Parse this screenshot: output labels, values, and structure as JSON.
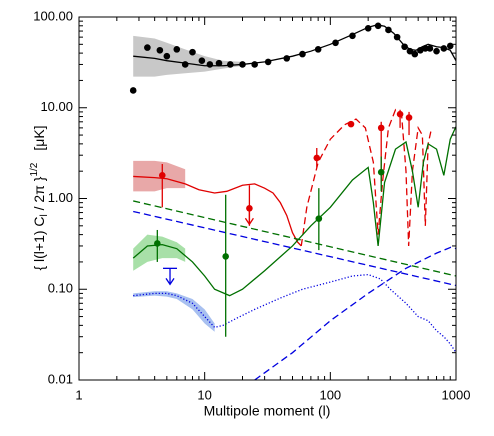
{
  "chart_data": {
    "type": "line",
    "xlog": true,
    "ylog": true,
    "xlim": [
      1,
      1000
    ],
    "ylim": [
      0.01,
      100
    ],
    "xticks": [
      1,
      10,
      100,
      1000
    ],
    "yticks": [
      {
        "value": 0.01,
        "label": "0.01"
      },
      {
        "value": 0.1,
        "label": "0.10"
      },
      {
        "value": 1,
        "label": "1.00"
      },
      {
        "value": 10,
        "label": "10.00"
      },
      {
        "value": 100,
        "label": "100.00"
      }
    ],
    "xlabel": "Multipole moment (l)",
    "ylabel": "{ l(l+1) C",
    "ylabel_sub": "l",
    "ylabel_mid": " / 2π }",
    "ylabel_sup": "1/2",
    "ylabel_unit": "[μK]",
    "bands": [
      {
        "color": "#c8c8c8",
        "x": [
          2.7,
          4,
          5,
          7,
          10,
          14,
          20
        ],
        "upper": [
          62,
          58,
          52,
          44,
          37,
          33,
          32
        ],
        "lower": [
          22,
          22,
          23,
          24,
          25,
          27,
          29
        ]
      },
      {
        "color": "#e8a8a8",
        "x": [
          2.7,
          4,
          5,
          7
        ],
        "upper": [
          2.6,
          2.6,
          2.5,
          2.1
        ],
        "lower": [
          1.2,
          1.2,
          1.3,
          1.3
        ]
      },
      {
        "color": "#a8e0a8",
        "x": [
          2.7,
          3.5,
          4.6,
          6,
          7
        ],
        "upper": [
          0.28,
          0.4,
          0.38,
          0.33,
          0.28
        ],
        "lower": [
          0.16,
          0.2,
          0.22,
          0.22,
          0.2
        ]
      },
      {
        "color": "#a8c0f0",
        "x": [
          2.7,
          4,
          5,
          6,
          8,
          10,
          12
        ],
        "upper": [
          0.09,
          0.095,
          0.095,
          0.09,
          0.078,
          0.06,
          0.042
        ],
        "lower": [
          0.082,
          0.085,
          0.083,
          0.078,
          0.06,
          0.042,
          0.034
        ]
      }
    ],
    "series": [
      {
        "color": "#000000",
        "style": "solid",
        "x": [
          2.7,
          4,
          5,
          7,
          10,
          14,
          20,
          30,
          50,
          70,
          100,
          150,
          200,
          236,
          270,
          320,
          380,
          430,
          480,
          540,
          600,
          700,
          800,
          900,
          1000
        ],
        "values": [
          37,
          35,
          33,
          31,
          29,
          29,
          30,
          32,
          37,
          42,
          50,
          64,
          77,
          82,
          79,
          66,
          50,
          44,
          43,
          47,
          50,
          47,
          46,
          43,
          33
        ]
      },
      {
        "color": "#e00000",
        "style": "solid",
        "x": [
          2.7,
          4,
          5,
          7,
          9,
          12,
          15,
          20,
          25,
          30,
          35,
          40,
          45,
          50,
          55,
          58.7
        ],
        "values": [
          1.75,
          1.7,
          1.65,
          1.45,
          1.25,
          1.15,
          1.2,
          1.4,
          1.45,
          1.3,
          1.15,
          0.9,
          0.65,
          0.42,
          0.33,
          0.3
        ]
      },
      {
        "color": "#e00000",
        "style": "dashed",
        "x": [
          58.7,
          65,
          80,
          100,
          130,
          160,
          190,
          220,
          240,
          260,
          290,
          330,
          370,
          400,
          420,
          450,
          500,
          540,
          570,
          600,
          640
        ],
        "values": [
          0.3,
          0.8,
          2.5,
          4.5,
          6.5,
          7.5,
          6,
          2.5,
          0.4,
          1.5,
          6,
          9.5,
          8,
          2,
          0.3,
          2,
          6,
          5,
          0.5,
          4,
          6
        ]
      },
      {
        "color": "#007000",
        "style": "solid",
        "x": [
          2.7,
          3.5,
          4.6,
          6,
          8,
          10,
          12,
          15.8,
          20,
          30,
          50,
          70,
          100,
          150,
          200,
          220,
          240,
          270,
          330,
          400,
          450,
          500,
          550,
          600,
          700,
          800,
          900,
          1000
        ],
        "values": [
          0.22,
          0.3,
          0.31,
          0.28,
          0.2,
          0.14,
          0.1,
          0.085,
          0.1,
          0.16,
          0.3,
          0.5,
          0.8,
          1.6,
          2.2,
          0.9,
          0.3,
          1.5,
          3.5,
          4.2,
          2,
          0.8,
          2.5,
          4,
          3.5,
          1.8,
          4.5,
          6.2
        ]
      },
      {
        "color": "#007000",
        "style": "dashed",
        "x": [
          2.7,
          1000
        ],
        "values": [
          0.94,
          0.14
        ]
      },
      {
        "color": "#0000e0",
        "style": "dashed",
        "x": [
          2.7,
          1000
        ],
        "values": [
          0.72,
          0.11
        ]
      },
      {
        "color": "#0000e0",
        "style": "dashed",
        "x": [
          25,
          50,
          100,
          200,
          400,
          700,
          910,
          1000
        ],
        "values": [
          0.01,
          0.02,
          0.045,
          0.09,
          0.17,
          0.25,
          0.29,
          0.28
        ]
      },
      {
        "color": "#0000e0",
        "style": "dotted",
        "x": [
          2.7,
          4,
          5,
          6,
          8,
          10,
          12,
          14,
          18,
          25,
          40,
          60,
          100,
          150,
          200,
          250,
          300,
          400,
          500,
          600,
          700,
          800,
          900,
          1000
        ],
        "values": [
          0.085,
          0.09,
          0.09,
          0.085,
          0.07,
          0.05,
          0.038,
          0.04,
          0.048,
          0.06,
          0.08,
          0.1,
          0.12,
          0.14,
          0.145,
          0.13,
          0.1,
          0.07,
          0.05,
          0.045,
          0.035,
          0.03,
          0.025,
          0.02
        ]
      }
    ],
    "points": [
      {
        "color": "#000000",
        "x": [
          2.7,
          3.5,
          4.4,
          5,
          6,
          7,
          8,
          9.5,
          11,
          13,
          16,
          20,
          25,
          32,
          45,
          60,
          80,
          110,
          150,
          200,
          240,
          290,
          340,
          390,
          430,
          470,
          520,
          570,
          620,
          700,
          800,
          900
        ],
        "values": [
          15.5,
          46,
          43,
          37,
          44,
          30,
          41,
          33,
          30,
          31,
          30,
          30,
          30,
          32,
          35,
          39,
          44,
          52,
          62,
          75,
          80,
          72,
          60,
          47,
          42,
          39,
          43,
          45,
          45,
          42,
          45,
          48
        ]
      },
      {
        "color": "#e00000",
        "x": [
          4.6,
          22.7,
          78,
          146,
          254,
          359,
          423
        ],
        "values": [
          1.8,
          0.78,
          2.8,
          6.6,
          6,
          8.5,
          7.8
        ],
        "lo": [
          0.8,
          0.5,
          2.2,
          6.4,
          1.5,
          6,
          5
        ],
        "hi": [
          2.4,
          1.4,
          3.6,
          6.8,
          7,
          9.5,
          9
        ]
      },
      {
        "color": "#007000",
        "x": [
          4.2,
          14.7,
          81,
          254
        ],
        "values": [
          0.32,
          0.23,
          0.6,
          1.95
        ],
        "lo": [
          0.2,
          0.03,
          0.27,
          1.2
        ],
        "hi": [
          0.45,
          1.1,
          1.3,
          2.9
        ]
      }
    ],
    "limits": [
      {
        "color": "#0000e0",
        "x": 5.3,
        "value": 0.17,
        "bar": true
      },
      {
        "color": "#e00000",
        "x": 22.7,
        "value": 0.78,
        "bar": false
      }
    ]
  }
}
